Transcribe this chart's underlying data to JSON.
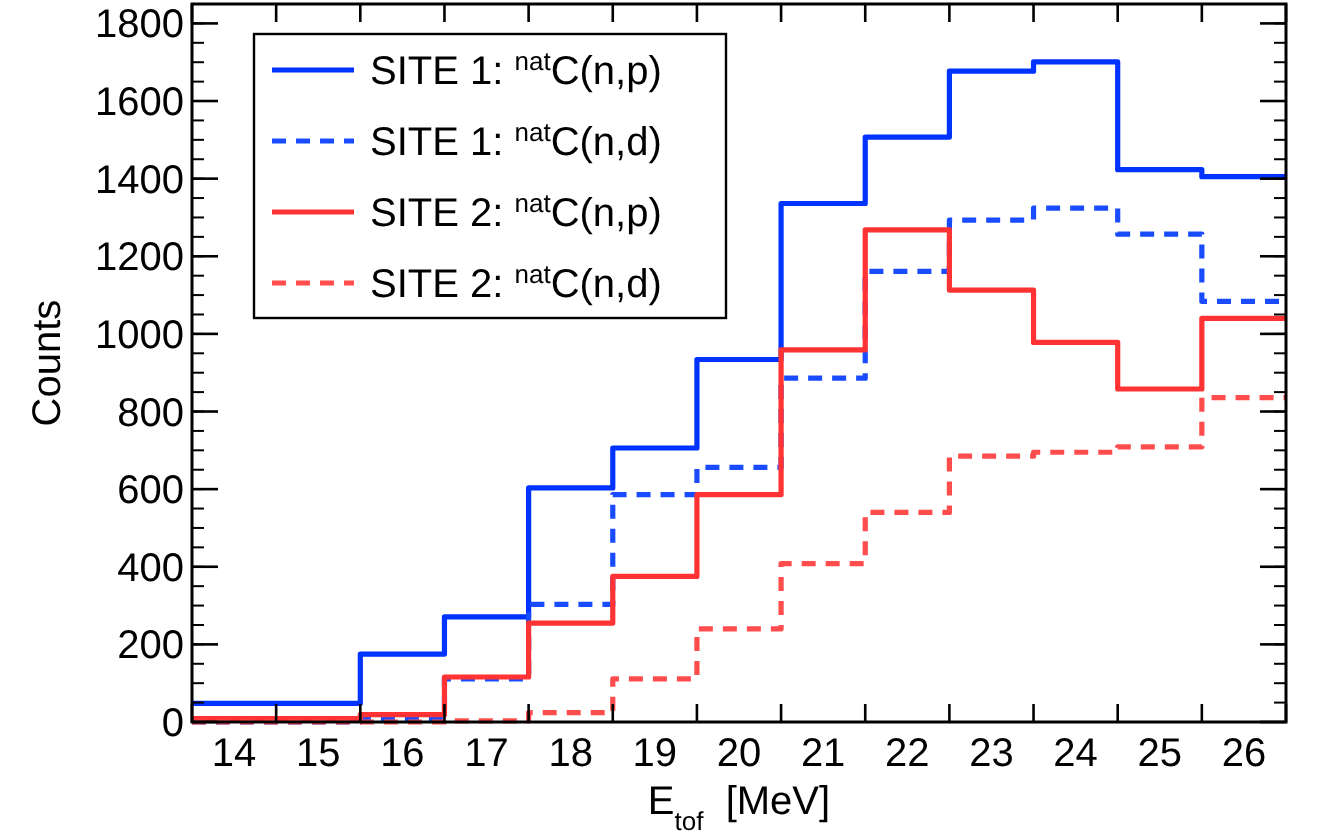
{
  "chart_data": {
    "type": "histogram",
    "xlabel": "E$_{tof}$  [MeV]",
    "ylabel": "Counts",
    "bins": [
      13.5,
      14.5,
      15.5,
      16.5,
      17.5,
      18.5,
      19.5,
      20.5,
      21.5,
      22.5,
      23.5,
      24.5,
      25.5,
      26.5
    ],
    "xlim": [
      13.5,
      26.5
    ],
    "xticks": [
      14,
      15,
      16,
      17,
      18,
      19,
      20,
      21,
      22,
      23,
      24,
      25,
      26
    ],
    "ylim": [
      0,
      1850
    ],
    "yticks": [
      0,
      200,
      400,
      600,
      800,
      1000,
      1200,
      1400,
      1600,
      1800
    ],
    "legend": "top left",
    "grid": false,
    "series": [
      {
        "name": "SITE 1: $^{nat}$C(n,p)",
        "color": "#0033ff",
        "line_style": "solid",
        "values": [
          48,
          48,
          175,
          271,
          603,
          706,
          934,
          1336,
          1507,
          1677,
          1701,
          1423,
          1405
        ]
      },
      {
        "name": "SITE 1: $^{nat}$C(n,d)",
        "color": "#1a4cff",
        "line_style": "dashed",
        "values": [
          0,
          0,
          8,
          111,
          303,
          586,
          656,
          886,
          1161,
          1293,
          1324,
          1257,
          1084
        ]
      },
      {
        "name": "SITE 2: $^{nat}$C(n,p)",
        "color": "#ff3333",
        "line_style": "solid",
        "values": [
          9,
          9,
          19,
          116,
          255,
          375,
          586,
          959,
          1268,
          1113,
          978,
          858,
          1040
        ]
      },
      {
        "name": "SITE 2: $^{nat}$C(n,d)",
        "color": "#ff4d4d",
        "line_style": "dashed",
        "values": [
          0,
          0,
          0,
          3,
          24,
          111,
          240,
          408,
          540,
          685,
          695,
          709,
          836
        ]
      }
    ]
  }
}
